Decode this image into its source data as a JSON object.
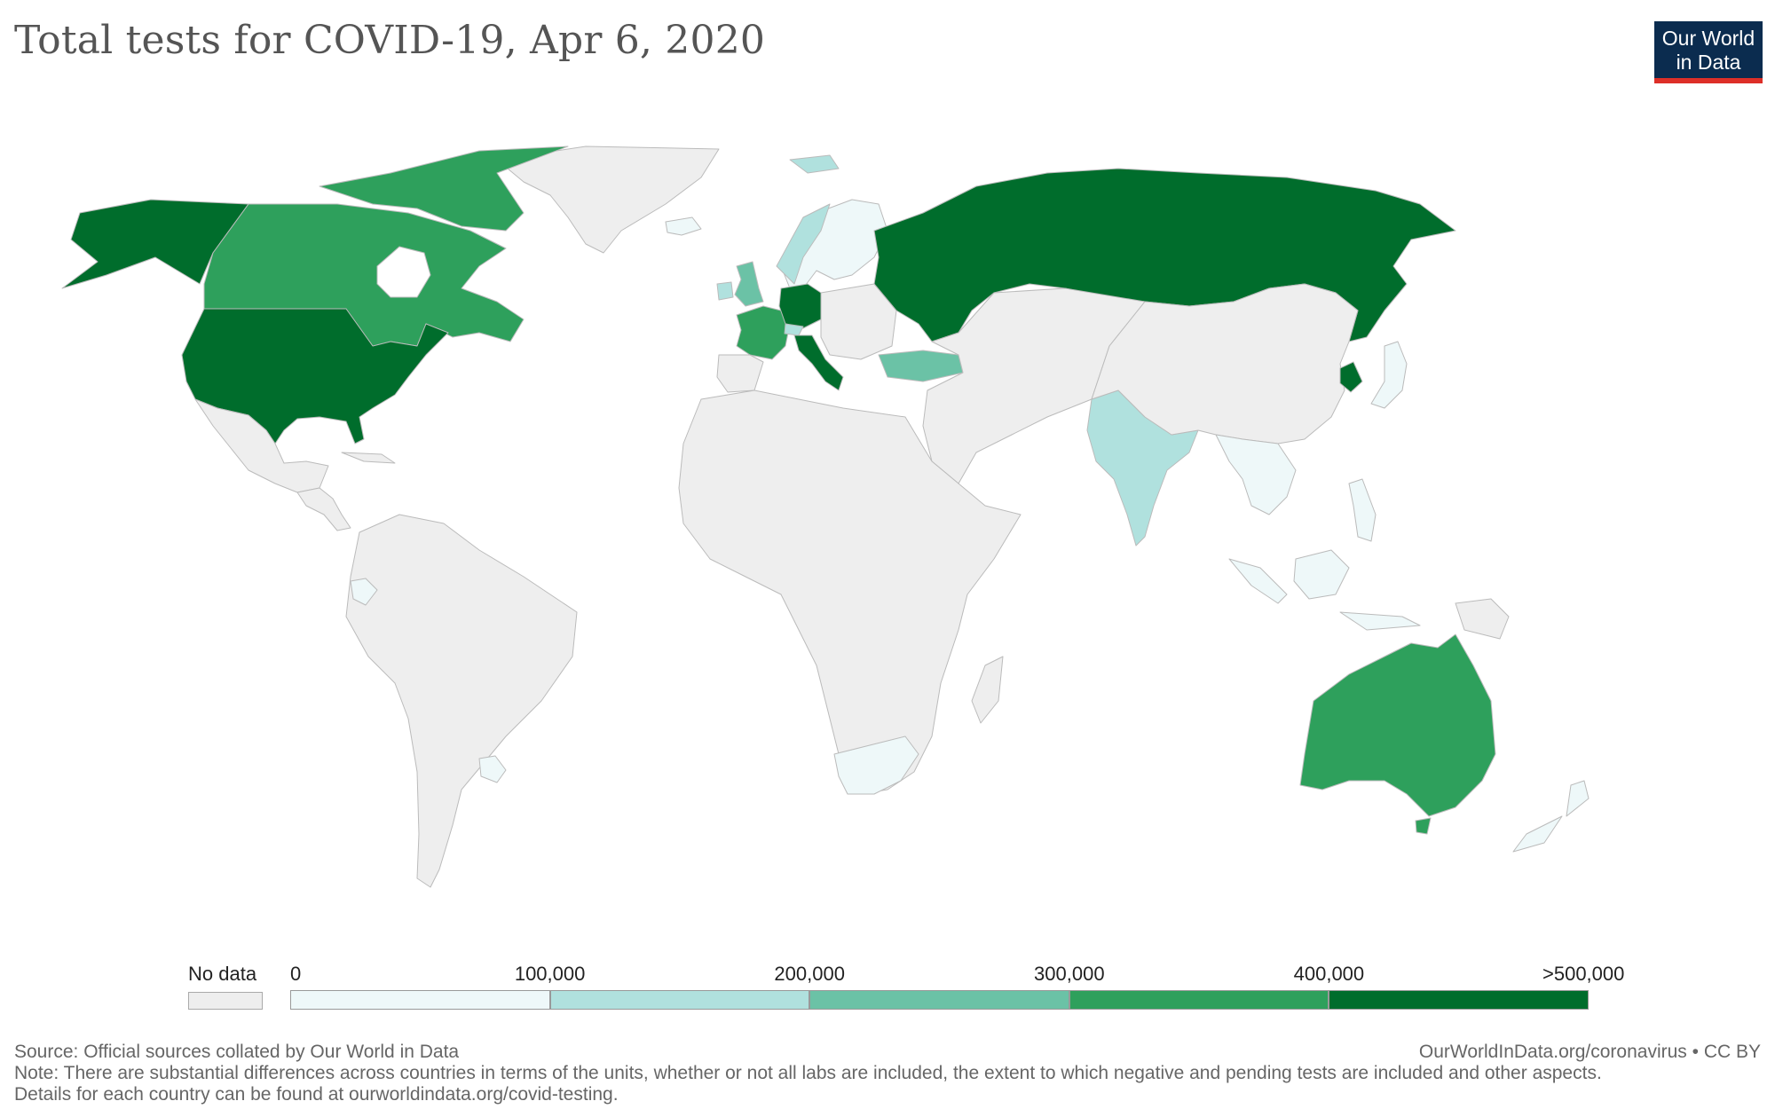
{
  "title": "Total tests for COVID-19, Apr 6, 2020",
  "logo": {
    "line1": "Our World",
    "line2": "in Data"
  },
  "legend": {
    "no_data_label": "No data",
    "bins": [
      {
        "label": "0",
        "color": "#eef8f9"
      },
      {
        "label": "100,000",
        "color": "#b0e1de"
      },
      {
        "label": "200,000",
        "color": "#6bc2a6"
      },
      {
        "label": "300,000",
        "color": "#2ea05c"
      },
      {
        "label": "400,000",
        "color": "#006d2c"
      }
    ],
    "end_label": ">500,000",
    "no_data_color": "#eeeeee"
  },
  "footer": {
    "source": "Source: Official sources collated by Our World in Data",
    "note": "Note: There are substantial differences across countries in terms of the units, whether or not all labs are included, the extent to which negative and pending tests are included and other aspects.",
    "details": "Details for each country can be found at ourworldindata.org/covid-testing.",
    "link": "OurWorldInData.org/coronavirus • CC BY"
  }
}
